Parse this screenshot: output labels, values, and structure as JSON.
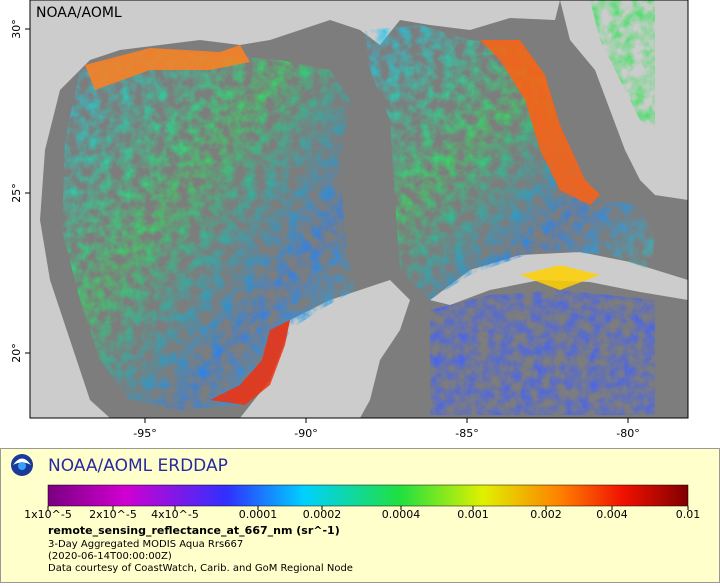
{
  "map": {
    "label": "NOAA/AOML",
    "x_ticks": [
      "-95°",
      "-90°",
      "-85°",
      "-80°"
    ],
    "y_ticks": [
      "30°",
      "25°",
      "20°"
    ]
  },
  "legend": {
    "title": "NOAA/AOML ERDDAP",
    "colorbar_ticks": [
      "1x10^-5",
      "2x10^-5",
      "4x10^-5",
      "0.0001",
      "0.0002",
      "0.0004",
      "0.001",
      "0.002",
      "0.004",
      "0.01"
    ],
    "variable": "remote_sensing_reflectance_at_667_nm (sr^-1)",
    "lines": [
      "3-Day Aggregated MODIS Aqua Rrs667",
      "(2020-06-14T00:00:00Z)",
      "Data courtesy of CoastWatch, Carib. and GoM Regional Node"
    ]
  }
}
